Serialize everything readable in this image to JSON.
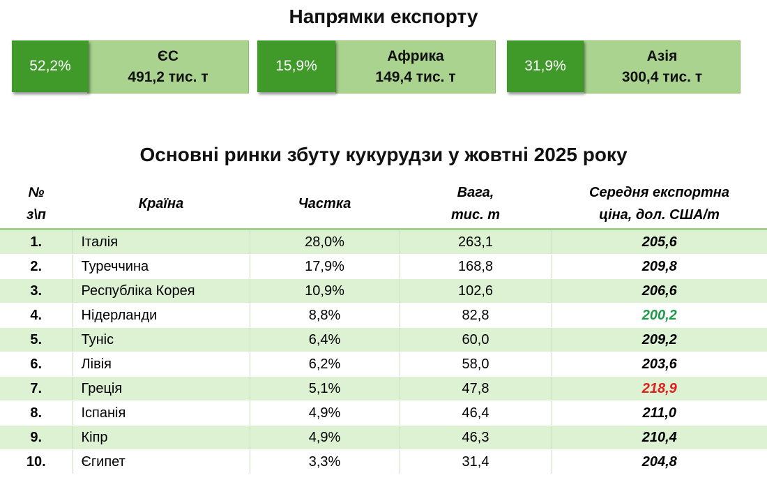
{
  "export_directions": {
    "title": "Напрямки експорту",
    "items": [
      {
        "share": "52,2%",
        "region": "ЄС",
        "volume": "491,2 тис. т"
      },
      {
        "share": "15,9%",
        "region": "Африка",
        "volume": "149,4 тис. т"
      },
      {
        "share": "31,9%",
        "region": "Азія",
        "volume": "300,4 тис. т"
      }
    ]
  },
  "markets": {
    "title": "Основні ринки збуту кукурудзи у жовтні 2025 року",
    "headers": {
      "num": "№\nз\\п",
      "country": "Країна",
      "share": "Частка",
      "weight": "Вага,\nтис. т",
      "price": "Середня експортна\nціна, дол. США/т"
    },
    "rows": [
      {
        "num": "1.",
        "country": "Італія",
        "share": "28,0%",
        "weight": "263,1",
        "price": "205,6",
        "price_color": "#000000"
      },
      {
        "num": "2.",
        "country": "Туреччина",
        "share": "17,9%",
        "weight": "168,8",
        "price": "209,8",
        "price_color": "#000000"
      },
      {
        "num": "3.",
        "country": "Республіка Корея",
        "share": "10,9%",
        "weight": "102,6",
        "price": "206,6",
        "price_color": "#000000"
      },
      {
        "num": "4.",
        "country": "Нідерланди",
        "share": "8,8%",
        "weight": "82,8",
        "price": "200,2",
        "price_color": "#1f9a4a"
      },
      {
        "num": "5.",
        "country": "Туніс",
        "share": "6,4%",
        "weight": "60,0",
        "price": "209,2",
        "price_color": "#000000"
      },
      {
        "num": "6.",
        "country": "Лівія",
        "share": "6,2%",
        "weight": "58,0",
        "price": "203,6",
        "price_color": "#000000"
      },
      {
        "num": "7.",
        "country": "Греція",
        "share": "5,1%",
        "weight": "47,8",
        "price": "218,9",
        "price_color": "#e02020"
      },
      {
        "num": "8.",
        "country": "Іспанія",
        "share": "4,9%",
        "weight": "46,4",
        "price": "211,0",
        "price_color": "#000000"
      },
      {
        "num": "9.",
        "country": "Кіпр",
        "share": "4,9%",
        "weight": "46,3",
        "price": "210,4",
        "price_color": "#000000"
      },
      {
        "num": "10.",
        "country": "Єгипет",
        "share": "3,3%",
        "weight": "31,4",
        "price": "204,8",
        "price_color": "#000000"
      }
    ]
  }
}
